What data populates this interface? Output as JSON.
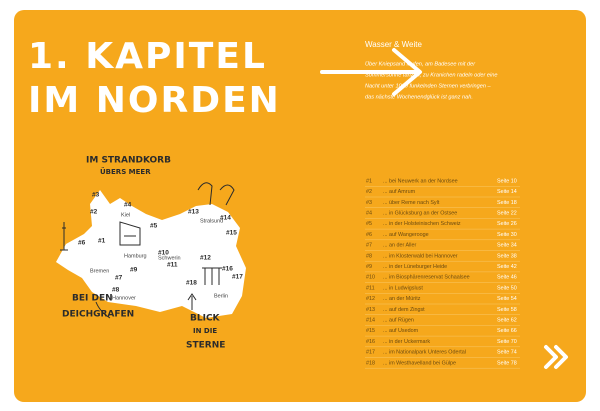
{
  "header": {
    "title_lines": [
      "1. KAPITEL",
      "IM NORDEN"
    ]
  },
  "intro": {
    "heading": "Wasser & Weite",
    "lines": [
      "Über Kniepsand laufen, am Badesee mit der",
      "Sommersonne tanzen, zu Kranichen radeln oder eine",
      "Nacht unter 1000 funkelnden Sternen verbringen –",
      "das nächste Wochenendglück ist ganz nah."
    ]
  },
  "map": {
    "labels": [
      [
        "IM STRANDKORB",
        "ÜBERS MEER"
      ],
      [
        "BEI DEN",
        "DEICHGRAFEN"
      ],
      [
        "BLICK",
        "IN DIE",
        "STERNE"
      ]
    ],
    "markers": [
      "#1",
      "#2",
      "#3",
      "#4",
      "#5",
      "#6",
      "#7",
      "#8",
      "#9",
      "#10",
      "#11",
      "#12",
      "#13",
      "#14",
      "#15",
      "#16",
      "#17",
      "#18"
    ],
    "cities": [
      "Kiel",
      "Hamburg",
      "Schwerin",
      "Stralsund",
      "Bremen",
      "Hannover",
      "Berlin"
    ]
  },
  "toc": {
    "rows": [
      [
        "#1",
        "... bei Neuwerk an der Nordsee",
        "Seite 10"
      ],
      [
        "#2",
        "... auf Amrum",
        "Seite 14"
      ],
      [
        "#3",
        "... über Reme nach Sylt",
        "Seite 18"
      ],
      [
        "#4",
        "... in Glücksburg an der Ostsee",
        "Seite 22"
      ],
      [
        "#5",
        "... in der Holsteinischen Schweiz",
        "Seite 26"
      ],
      [
        "#6",
        "... auf Wangerooge",
        "Seite 30"
      ],
      [
        "#7",
        "... an der Aller",
        "Seite 34"
      ],
      [
        "#8",
        "... im Klosterwald bei Hannover",
        "Seite 38"
      ],
      [
        "#9",
        "... in der Lüneburger Heide",
        "Seite 42"
      ],
      [
        "#10",
        "... im Biosphärenreservat Schaalsee",
        "Seite 46"
      ],
      [
        "#11",
        "... in Ludwigslust",
        "Seite 50"
      ],
      [
        "#12",
        "... an der Müritz",
        "Seite 54"
      ],
      [
        "#13",
        "... auf dem Zingst",
        "Seite 58"
      ],
      [
        "#14",
        "... auf Rügen",
        "Seite 62"
      ],
      [
        "#15",
        "... auf Usedom",
        "Seite 66"
      ],
      [
        "#16",
        "... in der Uckermark",
        "Seite 70"
      ],
      [
        "#17",
        "... im Nationalpark Unteres Odertal",
        "Seite 74"
      ],
      [
        "#18",
        "... im Westhavelland bei Gülpe",
        "Seite 78"
      ]
    ]
  }
}
